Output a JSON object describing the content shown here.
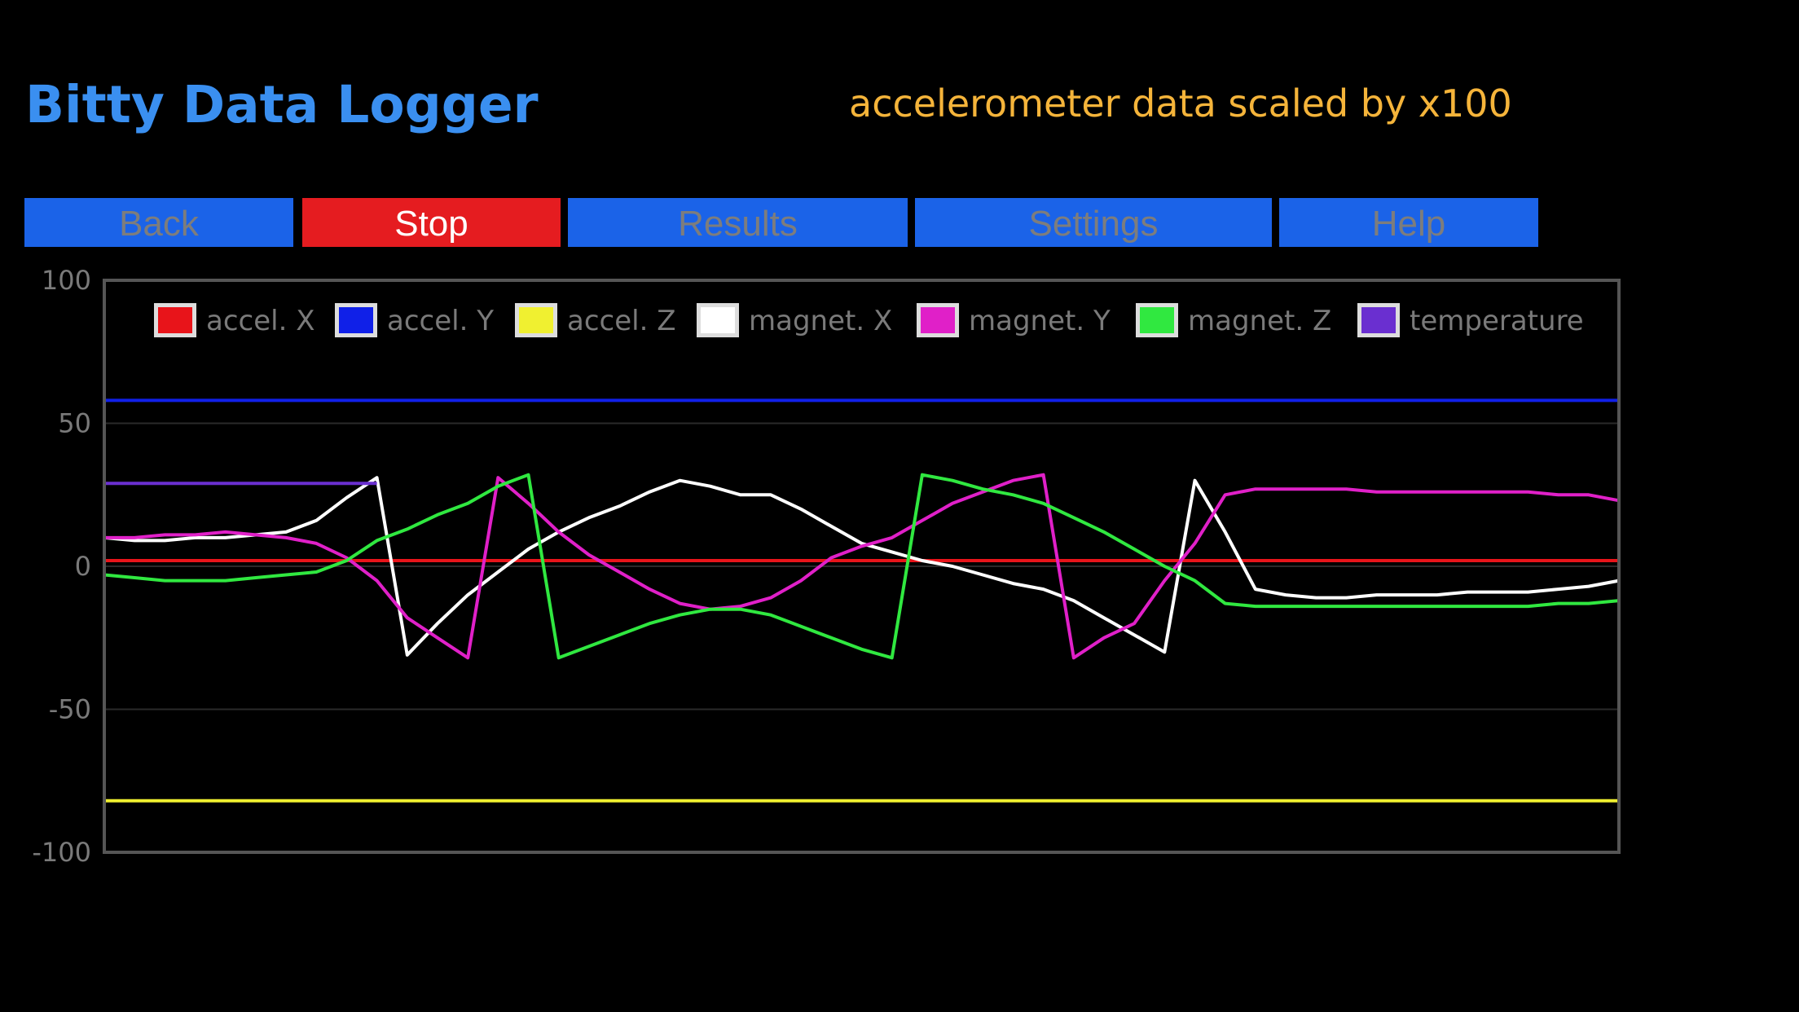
{
  "app": {
    "title": "Bitty Data Logger",
    "subtitle": "accelerometer data scaled by x100"
  },
  "nav": {
    "back_label": "Back",
    "stop_label": "Stop",
    "results_label": "Results",
    "settings_label": "Settings",
    "help_label": "Help"
  },
  "colors": {
    "title": "#3a8ff0",
    "subtitle": "#f5b43a",
    "button": "#1b63e8",
    "stop_button": "#e51c20",
    "background": "#000000"
  },
  "chart_data": {
    "type": "line",
    "title": "",
    "xlabel": "",
    "ylabel": "",
    "ylim": [
      -100,
      100
    ],
    "yticks": [
      100,
      50,
      0,
      -50,
      -100
    ],
    "grid": true,
    "legend_position": "top",
    "x": [
      0,
      2,
      4,
      6,
      8,
      10,
      12,
      14,
      16,
      18,
      20,
      22,
      24,
      26,
      28,
      30,
      32,
      34,
      36,
      38,
      40,
      42,
      44,
      46,
      48,
      50,
      52,
      54,
      56,
      58,
      60,
      62,
      64,
      66,
      68,
      70,
      72,
      74,
      76,
      78,
      80,
      82,
      84,
      86,
      88,
      90,
      92,
      94,
      96,
      98,
      100
    ],
    "series": [
      {
        "name": "accel. X",
        "color": "#e8141a",
        "values": [
          2,
          2,
          2,
          2,
          2,
          2,
          2,
          2,
          2,
          2,
          2,
          2,
          2,
          2,
          2,
          2,
          2,
          2,
          2,
          2,
          2,
          2,
          2,
          2,
          2,
          2,
          2,
          2,
          2,
          2,
          2,
          2,
          2,
          2,
          2,
          2,
          2,
          2,
          2,
          2,
          2,
          2,
          2,
          2,
          2,
          2,
          2,
          2,
          2,
          2,
          2
        ]
      },
      {
        "name": "accel. Y",
        "color": "#1020e8",
        "values": [
          58,
          58,
          58,
          58,
          58,
          58,
          58,
          58,
          58,
          58,
          58,
          58,
          58,
          58,
          58,
          58,
          58,
          58,
          58,
          58,
          58,
          58,
          58,
          58,
          58,
          58,
          58,
          58,
          58,
          58,
          58,
          58,
          58,
          58,
          58,
          58,
          58,
          58,
          58,
          58,
          58,
          58,
          58,
          58,
          58,
          58,
          58,
          58,
          58,
          58,
          58
        ]
      },
      {
        "name": "accel. Z",
        "color": "#f0f030",
        "values": [
          -82,
          -82,
          -82,
          -82,
          -82,
          -82,
          -82,
          -82,
          -82,
          -82,
          -82,
          -82,
          -82,
          -82,
          -82,
          -82,
          -82,
          -82,
          -82,
          -82,
          -82,
          -82,
          -82,
          -82,
          -82,
          -82,
          -82,
          -82,
          -82,
          -82,
          -82,
          -82,
          -82,
          -82,
          -82,
          -82,
          -82,
          -82,
          -82,
          -82,
          -82,
          -82,
          -82,
          -82,
          -82,
          -82,
          -82,
          -82,
          -82,
          -82,
          -82
        ]
      },
      {
        "name": "magnet. X",
        "color": "#ffffff",
        "values": [
          10,
          9,
          9,
          10,
          10,
          11,
          12,
          16,
          24,
          31,
          -31,
          -20,
          -10,
          -2,
          6,
          12,
          17,
          21,
          26,
          30,
          28,
          25,
          25,
          20,
          14,
          8,
          5,
          2,
          0,
          -3,
          -6,
          -8,
          -12,
          -18,
          -24,
          -30,
          30,
          12,
          -8,
          -10,
          -11,
          -11,
          -10,
          -10,
          -10,
          -9,
          -9,
          -9,
          -8,
          -7,
          -5
        ]
      },
      {
        "name": "magnet. Y",
        "color": "#e020c8",
        "values": [
          10,
          10,
          11,
          11,
          12,
          11,
          10,
          8,
          3,
          -5,
          -18,
          -25,
          -32,
          31,
          22,
          12,
          4,
          -2,
          -8,
          -13,
          -15,
          -14,
          -11,
          -5,
          3,
          7,
          10,
          16,
          22,
          26,
          30,
          32,
          -32,
          -25,
          -20,
          -5,
          8,
          25,
          27,
          27,
          27,
          27,
          26,
          26,
          26,
          26,
          26,
          26,
          25,
          25,
          23
        ]
      },
      {
        "name": "magnet. Z",
        "color": "#30e840",
        "values": [
          -3,
          -4,
          -5,
          -5,
          -5,
          -4,
          -3,
          -2,
          2,
          9,
          13,
          18,
          22,
          28,
          32,
          -32,
          -28,
          -24,
          -20,
          -17,
          -15,
          -15,
          -17,
          -21,
          -25,
          -29,
          -32,
          32,
          30,
          27,
          25,
          22,
          17,
          12,
          6,
          0,
          -5,
          -13,
          -14,
          -14,
          -14,
          -14,
          -14,
          -14,
          -14,
          -14,
          -14,
          -14,
          -13,
          -13,
          -12
        ]
      },
      {
        "name": "temperature",
        "color": "#6a2fd0",
        "values": [
          29,
          29,
          29,
          29,
          29,
          29,
          29,
          29,
          29,
          29,
          null,
          null,
          null,
          null,
          null,
          null,
          null,
          null,
          null,
          null,
          null,
          null,
          null,
          null,
          null,
          null,
          null,
          null,
          null,
          null,
          null,
          null,
          null,
          null,
          null,
          null,
          null,
          null,
          null,
          null,
          null,
          null,
          null,
          null,
          null,
          null,
          null,
          null,
          null,
          null,
          null
        ]
      }
    ]
  }
}
